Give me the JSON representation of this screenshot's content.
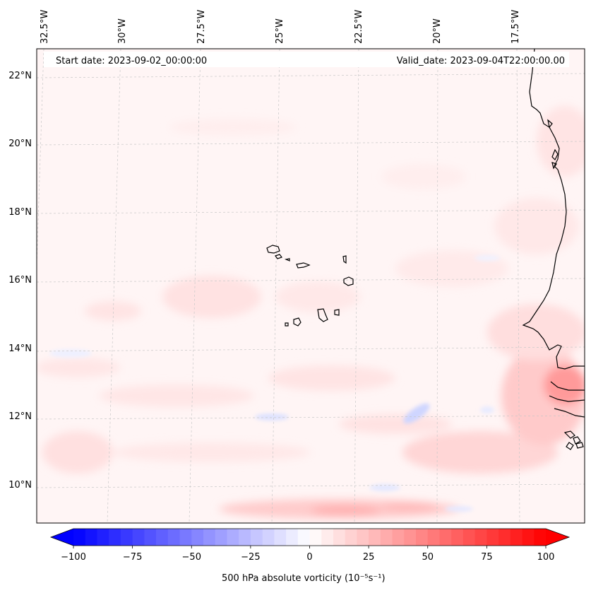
{
  "map": {
    "start_date": "Start date: 2023-09-02_00:00:00",
    "valid_date": "Valid_date: 2023-09-04T22:00:00.00",
    "lon_labels": [
      "32.5°W",
      "30°W",
      "27.5°W",
      "25°W",
      "22.5°W",
      "20°W",
      "17.5°W"
    ],
    "lat_labels": [
      "22°N",
      "20°N",
      "18°N",
      "16°N",
      "14°N",
      "12°N",
      "10°N"
    ],
    "field": "500 hPa absolute vorticity",
    "field_unit": "(10⁻⁵s⁻¹)",
    "colorbar": {
      "min": -100,
      "max": 100,
      "ticks": [
        "−100",
        "−75",
        "−50",
        "−25",
        "0",
        "25",
        "50",
        "75",
        "100"
      ],
      "negative_color": "#0000ff",
      "zero_color": "#ffffff",
      "positive_color": "#ff0000",
      "extend": "both"
    },
    "coastline_color": "#000000",
    "gridline_color": "#c8c8c8"
  }
}
